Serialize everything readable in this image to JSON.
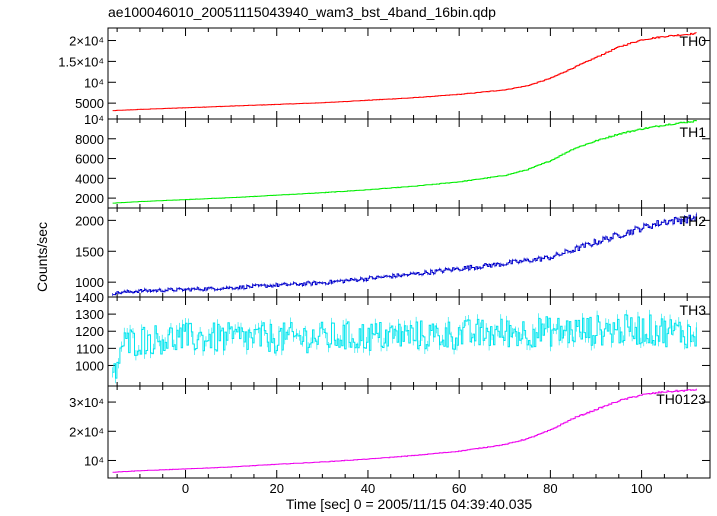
{
  "title": "ae100046010_20051115043940_wam3_bst_4band_16bin.qdp",
  "xlabel": "Time [sec] 0 = 2005/11/15 04:39:40.035",
  "ylabel": "Counts/sec",
  "x_tick_labels": [
    "0",
    "20",
    "40",
    "60",
    "80",
    "100"
  ],
  "chart_data": [
    {
      "type": "line",
      "series_label": "TH0",
      "color": "#ff0000",
      "xlim": [
        -17,
        115
      ],
      "ylim": [
        1200,
        23000
      ],
      "y_ticks": [
        5000,
        10000,
        15000,
        20000
      ],
      "y_tick_labels": [
        "5000",
        "10⁴",
        "1.5×10⁴",
        "2×10⁴"
      ],
      "x": [
        -16,
        -10,
        0,
        10,
        20,
        30,
        40,
        50,
        60,
        70,
        75,
        80,
        85,
        90,
        95,
        100,
        105,
        110,
        112
      ],
      "y": [
        3200,
        3500,
        3900,
        4300,
        4700,
        5100,
        5700,
        6300,
        7100,
        8200,
        9200,
        11000,
        13500,
        16000,
        18500,
        20200,
        21000,
        21500,
        21700
      ]
    },
    {
      "type": "line",
      "series_label": "TH1",
      "color": "#00ee00",
      "xlim": [
        -17,
        115
      ],
      "ylim": [
        1000,
        10000
      ],
      "y_ticks": [
        2000,
        4000,
        6000,
        8000,
        10000
      ],
      "y_tick_labels": [
        "2000",
        "4000",
        "6000",
        "8000",
        "10⁴"
      ],
      "x": [
        -16,
        -10,
        0,
        10,
        20,
        30,
        40,
        50,
        60,
        70,
        75,
        80,
        85,
        90,
        95,
        100,
        105,
        110,
        112
      ],
      "y": [
        1500,
        1650,
        1850,
        2050,
        2300,
        2550,
        2850,
        3200,
        3650,
        4300,
        4900,
        5800,
        7000,
        7800,
        8500,
        9000,
        9400,
        9700,
        9800
      ]
    },
    {
      "type": "line",
      "series_label": "TH2",
      "color": "#0000cc",
      "xlim": [
        -17,
        115
      ],
      "ylim": [
        760,
        2200
      ],
      "y_ticks": [
        1000,
        1500,
        2000
      ],
      "y_tick_labels": [
        "1000",
        "1500",
        "2000"
      ],
      "x": [
        -16,
        -10,
        0,
        10,
        20,
        30,
        40,
        50,
        60,
        70,
        80,
        90,
        100,
        105,
        110,
        112
      ],
      "y": [
        820,
        860,
        880,
        910,
        950,
        990,
        1060,
        1130,
        1220,
        1300,
        1400,
        1650,
        1880,
        1980,
        2020,
        2050
      ]
    },
    {
      "type": "line",
      "series_label": "TH3",
      "color": "#00e5ee",
      "xlim": [
        -17,
        115
      ],
      "ylim": [
        880,
        1400
      ],
      "y_ticks": [
        1000,
        1100,
        1200,
        1300,
        1400
      ],
      "y_tick_labels": [
        "1000",
        "1100",
        "1200",
        "1300",
        "1400"
      ],
      "x": [
        -16,
        -14,
        -10,
        0,
        20,
        40,
        60,
        80,
        100,
        110,
        112
      ],
      "y": [
        920,
        1120,
        1150,
        1160,
        1160,
        1170,
        1180,
        1200,
        1210,
        1190,
        1150
      ]
    },
    {
      "type": "line",
      "series_label": "TH0123",
      "color": "#ee00ee",
      "xlim": [
        -17,
        115
      ],
      "ylim": [
        4000,
        35500
      ],
      "y_ticks": [
        10000,
        20000,
        30000
      ],
      "y_tick_labels": [
        "10⁴",
        "2×10⁴",
        "3×10⁴"
      ],
      "x": [
        -16,
        -10,
        0,
        10,
        20,
        30,
        40,
        50,
        60,
        70,
        75,
        80,
        85,
        90,
        95,
        100,
        105,
        110,
        112
      ],
      "y": [
        6000,
        6500,
        7100,
        7800,
        8700,
        9500,
        10500,
        11700,
        13200,
        15500,
        17500,
        20500,
        24500,
        27500,
        30500,
        32500,
        33500,
        34000,
        34300
      ]
    }
  ]
}
